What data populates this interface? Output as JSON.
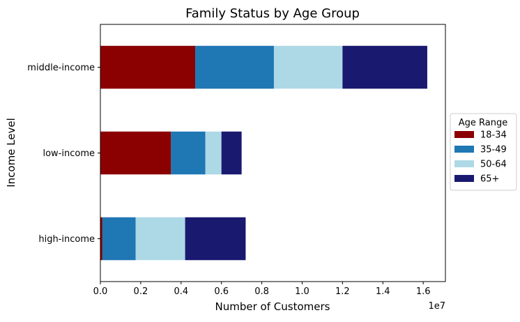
{
  "chart_data": {
    "type": "bar",
    "orientation": "horizontal",
    "stacked": true,
    "title": "Family Status by Age Group",
    "xlabel": "Number of Customers",
    "ylabel": "Income Level",
    "x_offset_text": "1e7",
    "categories": [
      "high-income",
      "low-income",
      "middle-income"
    ],
    "xlim": [
      0,
      17100000.0
    ],
    "x_ticks": [
      0.0,
      0.2,
      0.4,
      0.6,
      0.8,
      1.0,
      1.2,
      1.4,
      1.6
    ],
    "x_tick_labels": [
      "0.0",
      "0.2",
      "0.4",
      "0.6",
      "0.8",
      "1.0",
      "1.2",
      "1.4",
      "1.6"
    ],
    "grid": false,
    "legend": {
      "title": "Age Range",
      "placement": "center-right-outside"
    },
    "series": [
      {
        "name": "18-34",
        "color": "#8b0000",
        "values": [
          100000,
          3500000,
          4700000
        ]
      },
      {
        "name": "35-49",
        "color": "#1f77b4",
        "values": [
          1650000,
          1700000,
          3900000
        ]
      },
      {
        "name": "50-64",
        "color": "#add8e6",
        "values": [
          2450000,
          800000,
          3400000
        ]
      },
      {
        "name": "65+",
        "color": "#191970",
        "values": [
          3000000,
          1000000,
          4200000
        ]
      }
    ]
  }
}
